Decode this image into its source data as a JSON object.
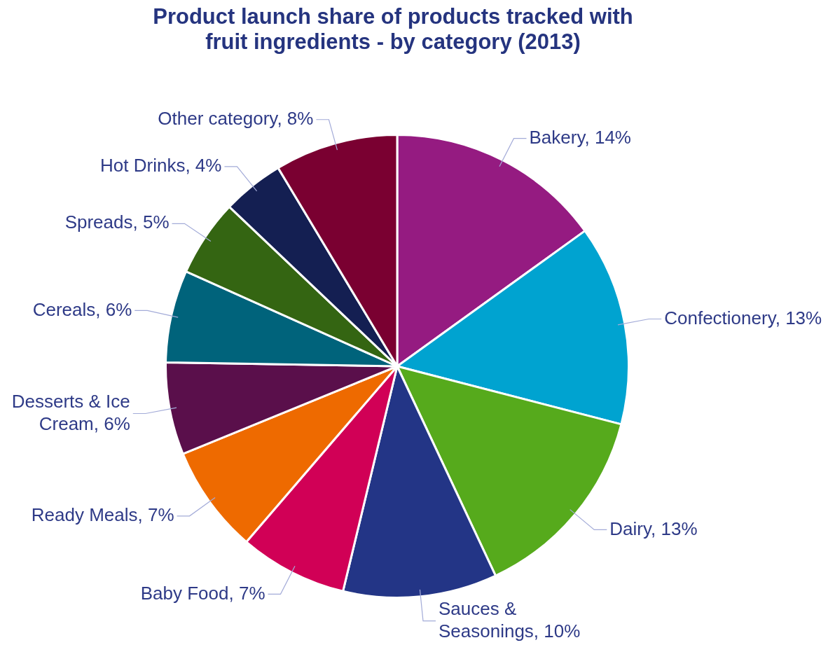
{
  "chart_data": {
    "type": "pie",
    "title": "Product launch share of products tracked with fruit ingredients - by category (2013)",
    "categories": [
      "Bakery",
      "Confectionery",
      "Dairy",
      "Sauces & Seasonings",
      "Baby Food",
      "Ready Meals",
      "Desserts & Ice Cream",
      "Cereals",
      "Spreads",
      "Hot Drinks",
      "Other category"
    ],
    "values": [
      14,
      13,
      13,
      10,
      7,
      7,
      6,
      6,
      5,
      4,
      8
    ],
    "value_labels": [
      "14%",
      "13%",
      "13%",
      "10%",
      "7%",
      "7%",
      "6%",
      "6%",
      "5%",
      "4%",
      "8%"
    ],
    "colors": [
      "#951b81",
      "#00a3d0",
      "#56aa1c",
      "#233586",
      "#d10056",
      "#ee6a00",
      "#5a0f4b",
      "#00637b",
      "#346512",
      "#141f52",
      "#7a0031"
    ],
    "legend": false
  }
}
